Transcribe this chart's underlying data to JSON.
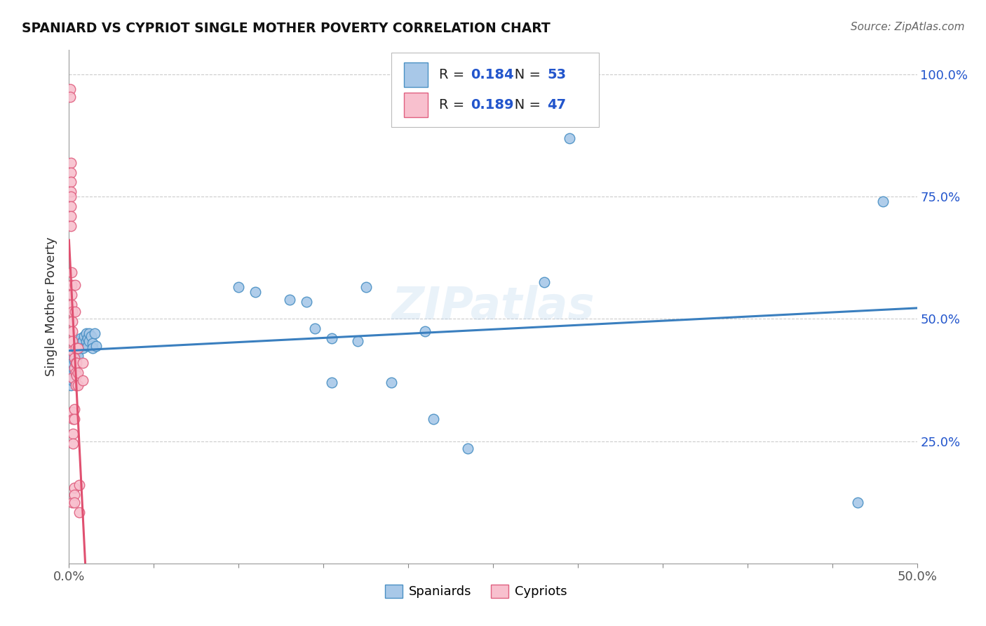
{
  "title": "SPANIARD VS CYPRIOT SINGLE MOTHER POVERTY CORRELATION CHART",
  "source": "Source: ZipAtlas.com",
  "ylabel": "Single Mother Poverty",
  "xlim": [
    0.0,
    0.5
  ],
  "ylim": [
    0.0,
    1.05
  ],
  "R_spaniard": 0.184,
  "N_spaniard": 53,
  "R_cypriot": 0.189,
  "N_cypriot": 47,
  "spaniard_fill": "#A8C8E8",
  "spaniard_edge": "#4A90C4",
  "cypriot_fill": "#F8C0CE",
  "cypriot_edge": "#E06080",
  "spaniard_line_color": "#3A7FBF",
  "cypriot_line_color": "#E05070",
  "watermark": "ZIPatlas",
  "legend_text_color": "#2255CC",
  "grid_color": "#cccccc",
  "background_color": "#ffffff",
  "spaniards_x": [
    0.001,
    0.001,
    0.001,
    0.001,
    0.002,
    0.002,
    0.002,
    0.002,
    0.003,
    0.003,
    0.003,
    0.003,
    0.004,
    0.004,
    0.004,
    0.005,
    0.005,
    0.005,
    0.006,
    0.006,
    0.007,
    0.007,
    0.008,
    0.008,
    0.009,
    0.01,
    0.01,
    0.011,
    0.011,
    0.012,
    0.012,
    0.013,
    0.014,
    0.014,
    0.015,
    0.016,
    0.1,
    0.11,
    0.13,
    0.14,
    0.145,
    0.155,
    0.155,
    0.17,
    0.175,
    0.19,
    0.21,
    0.215,
    0.235,
    0.28,
    0.295,
    0.465,
    0.48
  ],
  "spaniards_y": [
    0.405,
    0.39,
    0.375,
    0.365,
    0.42,
    0.41,
    0.395,
    0.375,
    0.425,
    0.415,
    0.395,
    0.375,
    0.44,
    0.43,
    0.42,
    0.445,
    0.435,
    0.425,
    0.455,
    0.44,
    0.46,
    0.45,
    0.455,
    0.44,
    0.465,
    0.47,
    0.455,
    0.46,
    0.445,
    0.47,
    0.455,
    0.465,
    0.45,
    0.44,
    0.47,
    0.445,
    0.565,
    0.555,
    0.54,
    0.535,
    0.48,
    0.46,
    0.37,
    0.455,
    0.565,
    0.37,
    0.475,
    0.295,
    0.235,
    0.575,
    0.87,
    0.125,
    0.74
  ],
  "cypriots_x": [
    0.0005,
    0.0005,
    0.001,
    0.001,
    0.001,
    0.001,
    0.001,
    0.001,
    0.001,
    0.001,
    0.0015,
    0.0015,
    0.0015,
    0.0015,
    0.002,
    0.002,
    0.002,
    0.002,
    0.002,
    0.002,
    0.002,
    0.002,
    0.0025,
    0.0025,
    0.0025,
    0.003,
    0.003,
    0.003,
    0.003,
    0.003,
    0.003,
    0.003,
    0.0035,
    0.0035,
    0.004,
    0.004,
    0.004,
    0.004,
    0.0045,
    0.0045,
    0.005,
    0.005,
    0.005,
    0.006,
    0.006,
    0.008,
    0.008
  ],
  "cypriots_y": [
    0.97,
    0.955,
    0.82,
    0.8,
    0.78,
    0.76,
    0.75,
    0.73,
    0.71,
    0.69,
    0.595,
    0.57,
    0.55,
    0.53,
    0.515,
    0.495,
    0.475,
    0.455,
    0.435,
    0.38,
    0.31,
    0.125,
    0.295,
    0.265,
    0.245,
    0.42,
    0.4,
    0.315,
    0.295,
    0.155,
    0.14,
    0.125,
    0.57,
    0.515,
    0.44,
    0.41,
    0.39,
    0.365,
    0.41,
    0.385,
    0.44,
    0.39,
    0.365,
    0.16,
    0.105,
    0.41,
    0.375
  ]
}
